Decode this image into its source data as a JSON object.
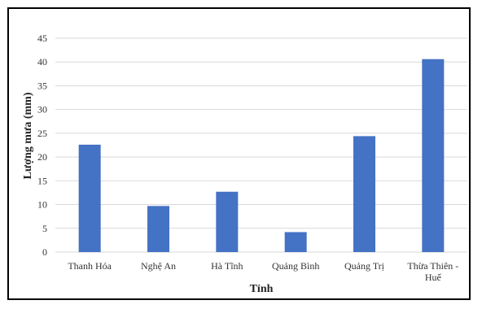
{
  "chart_data": {
    "type": "bar",
    "title": "",
    "xlabel": "Tỉnh",
    "ylabel": "Lượng mưa (mm)",
    "categories": [
      "Thanh Hóa",
      "Nghệ An",
      "Hà Tĩnh",
      "Quảng Bình",
      "Quảng Trị",
      "Thừa Thiên -\nHuế"
    ],
    "values": [
      22.6,
      9.7,
      12.7,
      4.2,
      24.4,
      40.6
    ],
    "ylim": [
      0,
      45
    ],
    "yticks": [
      0,
      5,
      10,
      15,
      20,
      25,
      30,
      35,
      40,
      45
    ],
    "grid": true,
    "legend": "none",
    "bar_color": "#4472C4",
    "grid_color": "#d9d9d9"
  }
}
